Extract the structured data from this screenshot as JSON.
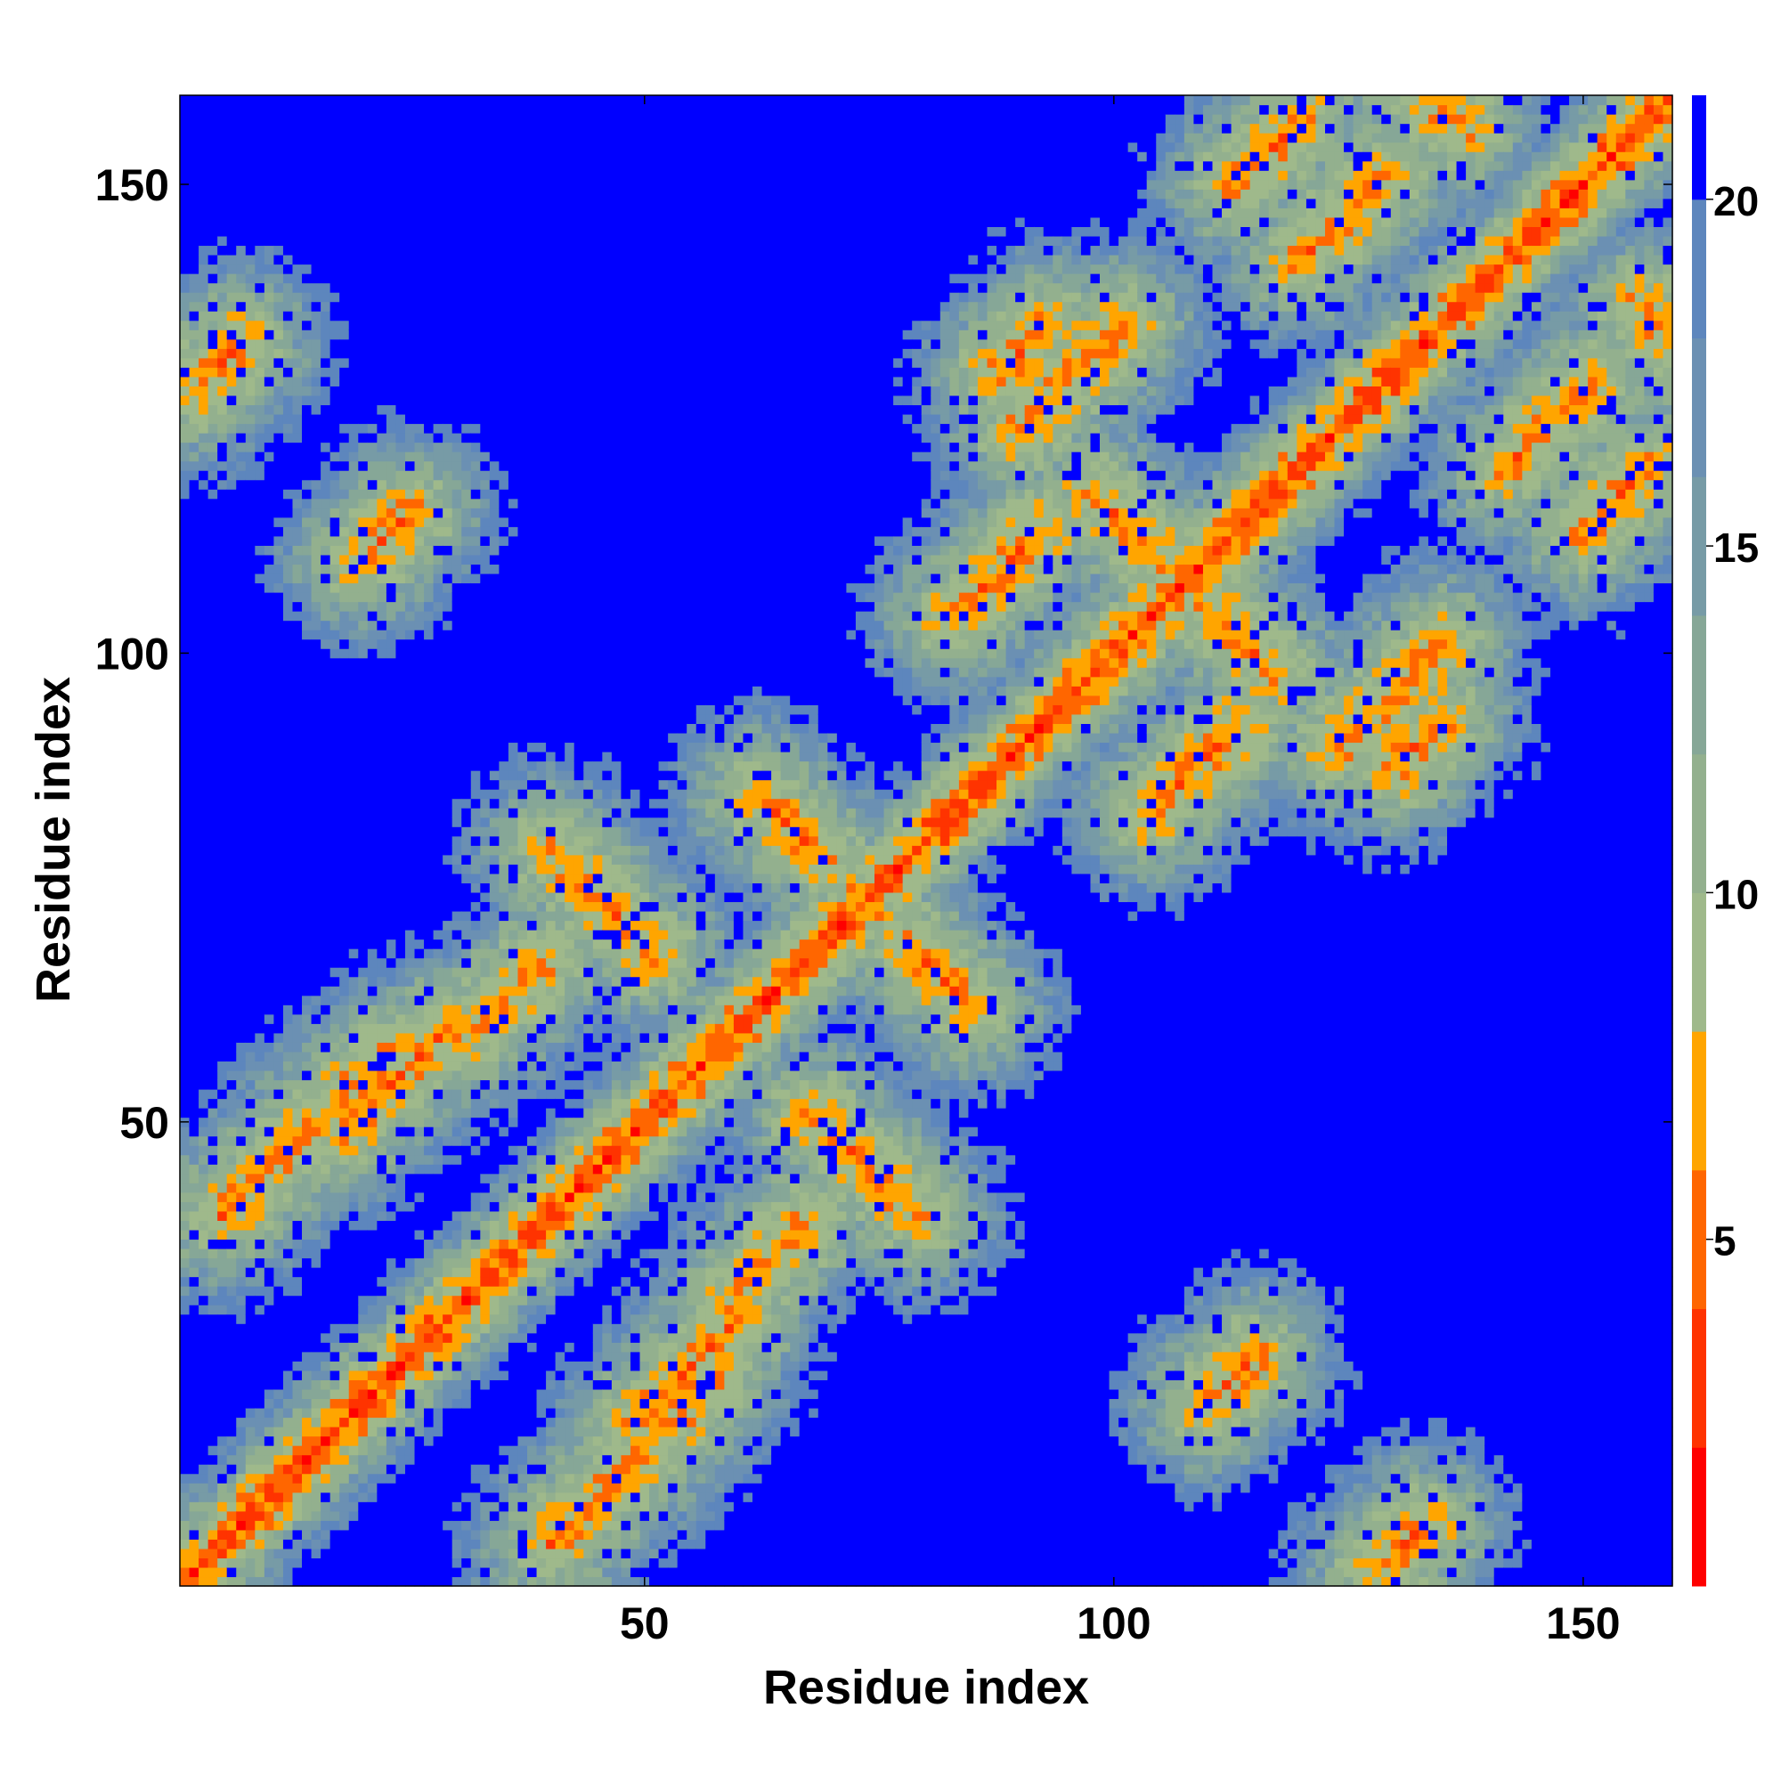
{
  "chart_data": {
    "type": "heatmap",
    "title": "",
    "xlabel": "Residue index",
    "ylabel": "Residue index",
    "n_residues": 159,
    "xlim": [
      1,
      159
    ],
    "ylim": [
      1,
      159
    ],
    "x_ticks": [
      50,
      100,
      150
    ],
    "y_ticks": [
      50,
      100,
      150
    ],
    "colorbar": {
      "ticks": [
        5,
        10,
        15,
        20
      ],
      "range": [
        0,
        21.5
      ],
      "bands": [
        {
          "max": 2.0,
          "color": "#ff0000"
        },
        {
          "max": 4.0,
          "color": "#ff3300"
        },
        {
          "max": 6.0,
          "color": "#ff6600"
        },
        {
          "max": 8.0,
          "color": "#ffa500"
        },
        {
          "max": 10.0,
          "color": "#9fb98b"
        },
        {
          "max": 12.0,
          "color": "#93b08e"
        },
        {
          "max": 14.0,
          "color": "#86a797"
        },
        {
          "max": 16.0,
          "color": "#779ba6"
        },
        {
          "max": 18.0,
          "color": "#6b90b3"
        },
        {
          "max": 20.0,
          "color": "#5d86bd"
        },
        {
          "max": 21.5,
          "color": "#0000ff"
        }
      ]
    },
    "values_unit": "distance (matrix is symmetric; value per residue pair)",
    "contact_features": [
      {
        "type": "diagonal",
        "i_from": 1,
        "i_to": 159,
        "offset": 0
      },
      {
        "type": "band",
        "i_from": 5,
        "j_from": 40,
        "length": 18
      },
      {
        "type": "band",
        "i_from": 18,
        "j_from": 49,
        "length": 12
      },
      {
        "type": "band",
        "i_from": 32,
        "j_from": 60,
        "length": 8
      },
      {
        "type": "antiband",
        "i_from": 40,
        "j_from": 68,
        "length": 12
      },
      {
        "type": "antiband",
        "i_from": 62,
        "j_from": 78,
        "length": 8
      },
      {
        "type": "band",
        "i_from": 83,
        "j_from": 104,
        "length": 10
      },
      {
        "type": "band",
        "i_from": 90,
        "j_from": 124,
        "length": 12
      },
      {
        "type": "antiband",
        "i_from": 98,
        "j_from": 110,
        "length": 8
      },
      {
        "type": "band",
        "i_from": 113,
        "j_from": 150,
        "length": 8
      },
      {
        "type": "band",
        "i_from": 120,
        "j_from": 142,
        "length": 10
      },
      {
        "type": "antiband",
        "i_from": 130,
        "j_from": 156,
        "length": 8
      },
      {
        "type": "band",
        "i_from": 2,
        "j_from": 128,
        "length": 6
      },
      {
        "type": "band",
        "i_from": 20,
        "j_from": 110,
        "length": 6
      },
      {
        "type": "band",
        "i_from": 88,
        "j_from": 130,
        "length": 6
      }
    ]
  }
}
